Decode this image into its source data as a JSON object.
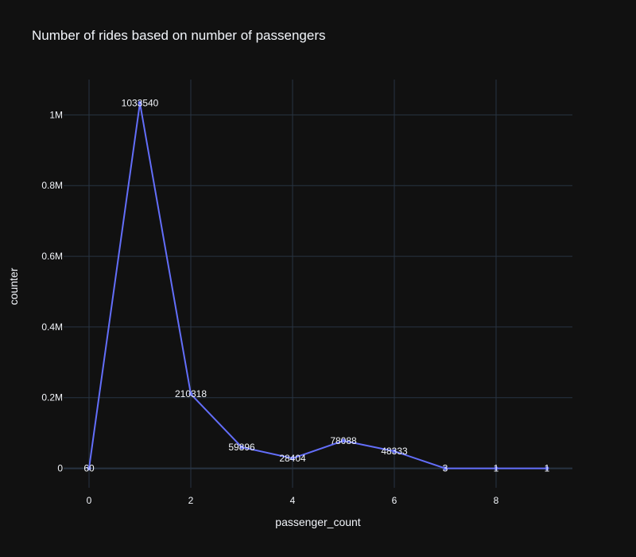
{
  "chart_data": {
    "type": "line",
    "title": "Number of rides based on number of passengers",
    "xlabel": "passenger_count",
    "ylabel": "counter",
    "x": [
      0,
      1,
      2,
      3,
      4,
      5,
      6,
      7,
      8,
      9
    ],
    "y": [
      60,
      1033540,
      210318,
      59896,
      28404,
      78088,
      48333,
      3,
      1,
      1
    ],
    "data_labels": [
      "60",
      "1033540",
      "210318",
      "59896",
      "28404",
      "78088",
      "48333",
      "3",
      "1",
      "1"
    ],
    "xlim": [
      -0.5,
      9.5
    ],
    "ylim": [
      -55000,
      1100000
    ],
    "x_ticks": [
      0,
      2,
      4,
      6,
      8
    ],
    "x_tick_labels": [
      "0",
      "2",
      "4",
      "6",
      "8"
    ],
    "y_ticks": [
      0,
      200000,
      400000,
      600000,
      800000,
      1000000
    ],
    "y_tick_labels": [
      "0",
      "0.2M",
      "0.4M",
      "0.6M",
      "0.8M",
      "1M"
    ],
    "grid": true,
    "colors": {
      "background": "#111111",
      "line": "#636efa",
      "grid": "#283442",
      "text": "#f2f5fa",
      "label_highlight": "#7bd67b"
    }
  }
}
